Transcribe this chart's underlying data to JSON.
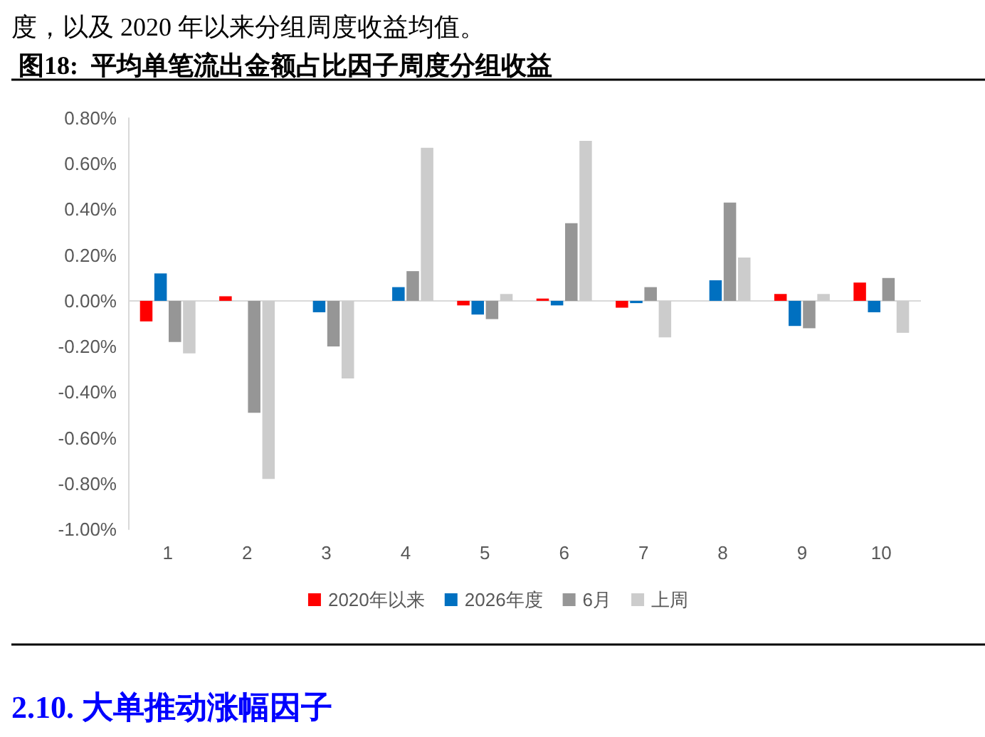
{
  "chart_data": {
    "type": "bar",
    "title": "图18:  平均单笔流出金额占比因子周度分组收益",
    "annotations": [
      "度，以及 2020 年以来分组周度收益均值。",
      "2.10. 大单推动涨幅因子"
    ],
    "categories": [
      "1",
      "2",
      "3",
      "4",
      "5",
      "6",
      "7",
      "8",
      "9",
      "10"
    ],
    "series": [
      {
        "name": "2020年以来",
        "color": "#ff0000",
        "values": [
          -0.09,
          0.02,
          0.0,
          0.0,
          -0.02,
          0.01,
          -0.03,
          0.0,
          0.03,
          0.08
        ]
      },
      {
        "name": "2026年度",
        "color": "#0070c0",
        "values": [
          0.12,
          0.0,
          -0.05,
          0.06,
          -0.06,
          -0.02,
          -0.01,
          0.09,
          -0.11,
          -0.05
        ]
      },
      {
        "name": "6月",
        "color": "#969696",
        "values": [
          -0.18,
          -0.49,
          -0.2,
          0.13,
          -0.08,
          0.34,
          0.06,
          0.43,
          -0.12,
          0.1
        ]
      },
      {
        "name": "上周",
        "color": "#cccccc",
        "values": [
          -0.23,
          -0.78,
          -0.34,
          0.67,
          0.03,
          0.7,
          -0.16,
          0.19,
          0.03,
          -0.14
        ]
      }
    ],
    "ylim": [
      -1.0,
      0.8
    ],
    "yticks": [
      {
        "value": -1.0,
        "label": "-1.00%"
      },
      {
        "value": -0.8,
        "label": "-0.80%"
      },
      {
        "value": -0.6,
        "label": "-0.60%"
      },
      {
        "value": -0.4,
        "label": "-0.40%"
      },
      {
        "value": -0.2,
        "label": "-0.20%"
      },
      {
        "value": 0,
        "label": "0.00%"
      },
      {
        "value": 0.2,
        "label": "0.20%"
      },
      {
        "value": 0.4,
        "label": "0.40%"
      },
      {
        "value": 0.6,
        "label": "0.60%"
      },
      {
        "value": 0.8,
        "label": "0.80%"
      }
    ],
    "ref_lines": [
      {
        "axis": "y",
        "value": 0,
        "color": "#d9d9d9"
      }
    ],
    "grid": false,
    "legend": "bottom"
  }
}
